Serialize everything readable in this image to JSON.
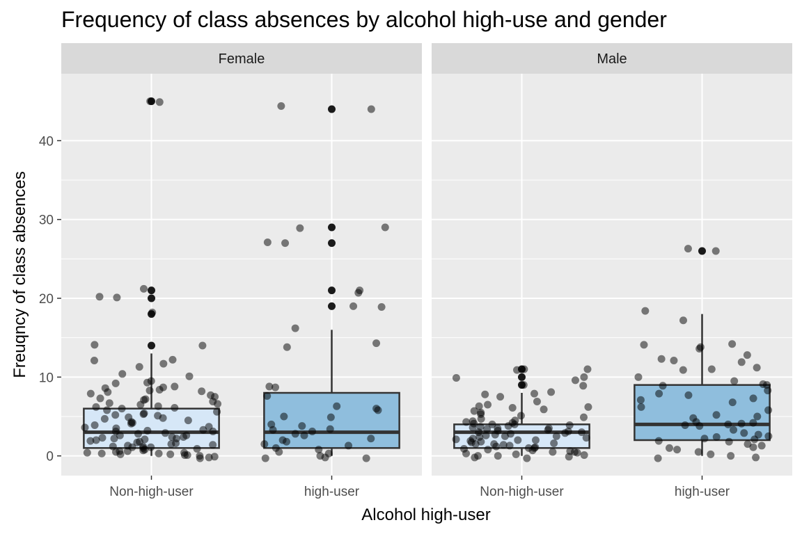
{
  "chart_data": {
    "type": "boxplot",
    "title": "Frequency of class absences by alcohol high-use and gender",
    "xlabel": "Alcohol high-user",
    "ylabel": "Freuqncy of class absences",
    "categories": [
      "Non-high-user",
      "high-user"
    ],
    "ylim": [
      -2.5,
      48.5
    ],
    "yticks": [
      0,
      10,
      20,
      30,
      40
    ],
    "grid": true,
    "fill_colors": {
      "Non-high-user": "#d6e7f7",
      "high-user": "#8fbedd"
    },
    "panels": [
      {
        "facet": "Female",
        "boxes": [
          {
            "category": "Non-high-user",
            "min": 0,
            "q1": 1,
            "median": 3,
            "q3": 6,
            "max": 13,
            "outliers": [
              14,
              18,
              20,
              21,
              45
            ]
          },
          {
            "category": "high-user",
            "min": 0,
            "q1": 1,
            "median": 3,
            "q3": 8,
            "max": 16,
            "outliers": [
              19,
              21,
              27,
              29,
              44
            ]
          }
        ],
        "points": [
          {
            "category": "Non-high-user",
            "offset": 0.22,
            "y": [
              45,
              44.9,
              20.2,
              20.1,
              21.2,
              18.2,
              14.1,
              14,
              11.7,
              11.3,
              10.4,
              10.1,
              12.2,
              12.1,
              9.5,
              9.2,
              8.8,
              8.6,
              8.4,
              8.3,
              8.1,
              7.9,
              7.7,
              7.5,
              7.3,
              7.1,
              6.9,
              6.7,
              6.5,
              6.3,
              6.1,
              6,
              5.8,
              5.6,
              5.4,
              5.2,
              5.1,
              4.9,
              4.7,
              4.5,
              4.3,
              4.1,
              3.9,
              3.7,
              3.5,
              3.3,
              3.2,
              3.1,
              2.9,
              2.8,
              2.6,
              2.4,
              2.3,
              2.2,
              2.1,
              2,
              1.9,
              1.8,
              1.6,
              1.5,
              1.4,
              1.3,
              1.2,
              1.1,
              1,
              0.9,
              0.8,
              0.7,
              0.6,
              0.5,
              0.4,
              0.3,
              0.2,
              0.1,
              0,
              -0.1,
              -0.2,
              -0.3,
              0.1,
              0.2,
              0.3,
              0.4,
              0.6,
              1.1,
              1.2,
              1.7,
              2.2,
              2.4,
              2.6,
              3.1,
              3.6,
              4.2,
              4.8,
              5.3,
              6.2,
              6.6,
              7.2,
              8.2,
              8.7,
              9.3
            ]
          },
          {
            "category": "high-user",
            "offset": 0.22,
            "y": [
              44.4,
              44,
              29,
              28.9,
              27.1,
              27,
              21,
              20.7,
              19,
              18.9,
              16.2,
              14.3,
              13.8,
              8.8,
              8.7,
              7.6,
              6.3,
              6,
              5.8,
              5,
              4.9,
              4,
              3.8,
              3.4,
              3.3,
              3.1,
              2.8,
              2.6,
              2.2,
              2,
              1.8,
              1.5,
              1.3,
              1,
              0.8,
              0.5,
              0.3,
              0,
              -0.3,
              -0.3,
              -0.2
            ]
          }
        ]
      },
      {
        "facet": "Male",
        "boxes": [
          {
            "category": "Non-high-user",
            "min": 0,
            "q1": 1,
            "median": 3,
            "q3": 4,
            "max": 8,
            "outliers": [
              9,
              10,
              11
            ]
          },
          {
            "category": "high-user",
            "min": 0,
            "q1": 2,
            "median": 4,
            "q3": 9,
            "max": 18,
            "outliers": [
              26
            ]
          }
        ],
        "points": [
          {
            "category": "Non-high-user",
            "offset": 0.22,
            "y": [
              11,
              11,
              10.9,
              10,
              9.9,
              9.6,
              9,
              8.9,
              8.1,
              7.9,
              7.8,
              7.5,
              6.9,
              6.5,
              6.3,
              6.2,
              6.1,
              5.9,
              5.7,
              5.5,
              5.3,
              5.1,
              4.9,
              4.7,
              4.5,
              4.4,
              4.3,
              4.2,
              4.1,
              4,
              3.9,
              3.8,
              3.7,
              3.6,
              3.5,
              3.4,
              3.3,
              3.2,
              3.1,
              3,
              2.9,
              2.8,
              2.7,
              2.6,
              2.5,
              2.4,
              2.3,
              2.2,
              2.1,
              2,
              1.9,
              1.8,
              1.7,
              1.6,
              1.5,
              1.4,
              1.3,
              1.2,
              1.1,
              1,
              0.9,
              0.8,
              0.7,
              0.6,
              0.5,
              0.4,
              0.3,
              0.2,
              0.1,
              0,
              -0.1,
              -0.2,
              -0.3,
              0,
              0.5,
              1,
              1.5,
              2,
              2.5,
              3,
              3.5,
              4
            ]
          },
          {
            "category": "high-user",
            "offset": 0.22,
            "y": [
              26.3,
              26,
              18.4,
              17.2,
              14.2,
              14.1,
              13.8,
              13.6,
              12.8,
              12.3,
              12.1,
              11.9,
              11.2,
              11,
              10.9,
              10,
              9.5,
              9.1,
              9,
              8.9,
              8.3,
              7.9,
              7.7,
              7.3,
              7.1,
              6.8,
              6.2,
              5.8,
              5.2,
              5,
              4.8,
              4.3,
              4.2,
              4.1,
              4,
              3.9,
              3.8,
              3.3,
              2.9,
              2.7,
              2.5,
              2.4,
              2.2,
              2.1,
              1.9,
              1.8,
              1.5,
              1.3,
              1.1,
              1,
              0.8,
              0.5,
              0.2,
              0,
              -0.2,
              -0.3
            ]
          }
        ]
      }
    ]
  }
}
